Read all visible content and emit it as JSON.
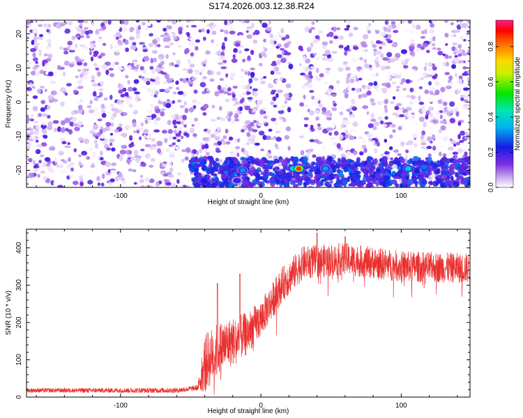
{
  "title": "S174.2026.003.12.38.R24",
  "chart_data": [
    {
      "type": "heatmap",
      "xlabel": "Height of straight line (km)",
      "ylabel": "Frequency (Hz)",
      "xlim": [
        -167,
        149
      ],
      "ylim": [
        -25,
        24
      ],
      "xticks": [
        -100,
        0,
        100
      ],
      "xtick_labels": [
        "-100",
        "0",
        "100"
      ],
      "yticks": [
        -20,
        -10,
        0,
        10,
        20
      ],
      "ytick_labels": [
        "-20",
        "-10",
        "0",
        "10",
        "20"
      ],
      "colorbar": {
        "label": "Normalized spectral amplitude",
        "range": [
          0.0,
          0.95
        ],
        "ticks": [
          0.0,
          0.2,
          0.4,
          0.6,
          0.8
        ],
        "tick_labels": [
          "0.0",
          "0.2",
          "0.4",
          "0.6",
          "0.8"
        ]
      },
      "background_noise_level": 0.15,
      "band": {
        "frequency": -20,
        "x_start": -50,
        "x_end": 149,
        "level": 0.3
      },
      "gap_x": [
        22,
        28
      ],
      "hotspots": [
        {
          "x": -17,
          "y": -23,
          "value": 0.3
        },
        {
          "x": -13,
          "y": -20,
          "value": 0.4
        },
        {
          "x": 23,
          "y": -19.5,
          "value": 0.5
        },
        {
          "x": 27,
          "y": -19.5,
          "value": 0.92
        },
        {
          "x": 46,
          "y": -19.5,
          "value": 0.42
        },
        {
          "x": 105,
          "y": -19.5,
          "value": 0.45
        }
      ]
    },
    {
      "type": "line",
      "xlabel": "Height of straight line (km)",
      "ylabel": "SNR (10 * v/v)",
      "xlim": [
        -167,
        149
      ],
      "ylim": [
        0,
        450
      ],
      "xticks": [
        -100,
        0,
        100
      ],
      "xtick_labels": [
        "-100",
        "0",
        "100"
      ],
      "yticks": [
        0,
        100,
        200,
        300,
        400
      ],
      "ytick_labels": [
        "0",
        "100",
        "200",
        "300",
        "400"
      ],
      "color": "#e8312f",
      "baseline_trend": [
        {
          "x": -167,
          "y": 18
        },
        {
          "x": -60,
          "y": 18
        },
        {
          "x": -45,
          "y": 25
        },
        {
          "x": -40,
          "y": 90
        },
        {
          "x": -30,
          "y": 130
        },
        {
          "x": -10,
          "y": 170
        },
        {
          "x": 0,
          "y": 210
        },
        {
          "x": 15,
          "y": 300
        },
        {
          "x": 30,
          "y": 360
        },
        {
          "x": 60,
          "y": 370
        },
        {
          "x": 100,
          "y": 350
        },
        {
          "x": 149,
          "y": 345
        }
      ],
      "noise_amplitude_levels": [
        {
          "x": -167,
          "y": 12
        },
        {
          "x": -45,
          "y": 15
        },
        {
          "x": -40,
          "y": 160
        },
        {
          "x": 0,
          "y": 100
        },
        {
          "x": 30,
          "y": 90
        },
        {
          "x": 149,
          "y": 80
        }
      ],
      "peak_values": [
        {
          "x": -31,
          "y": 305
        },
        {
          "x": -15,
          "y": 330
        },
        {
          "x": 40,
          "y": 440
        },
        {
          "x": 60,
          "y": 430
        }
      ]
    }
  ]
}
